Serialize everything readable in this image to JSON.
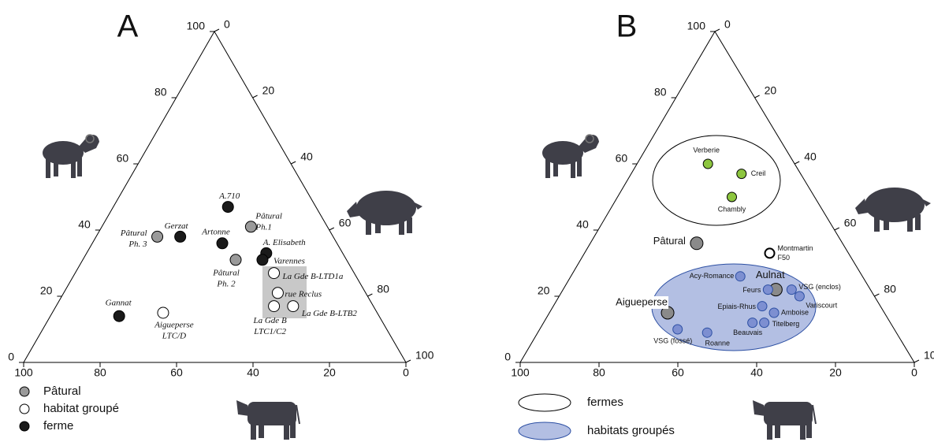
{
  "chart_data": [
    {
      "type": "ternary",
      "panel": "A",
      "ticks": [
        0,
        20,
        40,
        60,
        80,
        100
      ],
      "series": [
        {
          "name": "Pâtural",
          "color": "#9a9a9a",
          "labels": [
            [
              "Pâtural",
              "Ph.1"
            ],
            [
              "Pâtural",
              "Ph. 3"
            ],
            [
              "Pâtural",
              "Ph. 2"
            ]
          ],
          "sheep": [
            41,
            38,
            31
          ],
          "pig": [
            39,
            16,
            40
          ],
          "cattle": [
            20,
            46,
            29
          ]
        },
        {
          "name": "habitat groupé",
          "color": "#ffffff",
          "labels": [
            [
              "La Gde B-LTD1a"
            ],
            [
              "rue Reclus"
            ],
            [
              "La Gde B",
              "LTC1/C2"
            ],
            [
              "La Gde B-LTB2"
            ],
            [
              "Aigueperse",
              "LTC/D"
            ]
          ],
          "sheep": [
            27,
            21,
            17,
            17,
            15
          ],
          "pig": [
            52,
            56,
            57,
            62,
            29
          ],
          "cattle": [
            21,
            23,
            26,
            21,
            56
          ]
        },
        {
          "name": "ferme",
          "color": "#1a1a1a",
          "labels": [
            [
              "A.710"
            ],
            [
              "Gerzat"
            ],
            [
              "Artonne"
            ],
            [
              "A. Elisabeth"
            ],
            [
              "Varennes"
            ],
            [
              "Gannat"
            ]
          ],
          "sheep": [
            47,
            38,
            36,
            33,
            31,
            14
          ],
          "pig": [
            30,
            22,
            34,
            47,
            47,
            18
          ],
          "cattle": [
            23,
            40,
            30,
            20,
            22,
            68
          ]
        }
      ]
    },
    {
      "type": "ternary",
      "panel": "B",
      "ticks": [
        0,
        20,
        40,
        60,
        80,
        100
      ],
      "legend": [
        {
          "label": "fermes",
          "color": "#ffffff"
        },
        {
          "label": "habitats groupés",
          "color": "#b3bfe3"
        }
      ],
      "series": [
        {
          "color": "#8dc63f",
          "labels": [
            [
              "Verberie"
            ],
            [
              "Creil"
            ],
            [
              "Chambly"
            ]
          ],
          "sheep": [
            60,
            57,
            50
          ],
          "pig": [
            18,
            28,
            29
          ],
          "cattle": [
            22,
            15,
            21
          ]
        },
        {
          "color": "#8a8a8a",
          "labels": [
            [
              "Pâtural"
            ],
            [
              "Aulnat"
            ],
            [
              "Aigueperse"
            ]
          ],
          "sheep": [
            36,
            22,
            15
          ],
          "pig": [
            27,
            54,
            30
          ],
          "cattle": [
            37,
            24,
            55
          ]
        },
        {
          "color": "#ffffff",
          "labels": [
            [
              "Montmartin",
              "F50"
            ]
          ],
          "sheep": [
            33
          ],
          "pig": [
            47
          ],
          "cattle": [
            20
          ]
        },
        {
          "color": "#7d8fd1",
          "labels": [
            [
              "Acy-Romance"
            ],
            [
              "VSG (enclos)"
            ],
            [
              "Feurs"
            ],
            [
              "Variscourt"
            ],
            [
              "Epiais-Rhus"
            ],
            [
              "Amboise"
            ],
            [
              "Beauvais"
            ],
            [
              "Titelberg"
            ],
            [
              "VSG (fossé)"
            ],
            [
              "Roanne"
            ]
          ],
          "sheep": [
            26,
            22,
            22,
            20,
            17,
            15,
            12,
            12,
            10,
            9
          ],
          "pig": [
            43,
            58,
            52,
            61,
            53,
            57,
            53,
            56,
            35,
            43
          ],
          "cattle": [
            31,
            20,
            26,
            19,
            30,
            28,
            35,
            32,
            55,
            48
          ]
        }
      ]
    }
  ]
}
